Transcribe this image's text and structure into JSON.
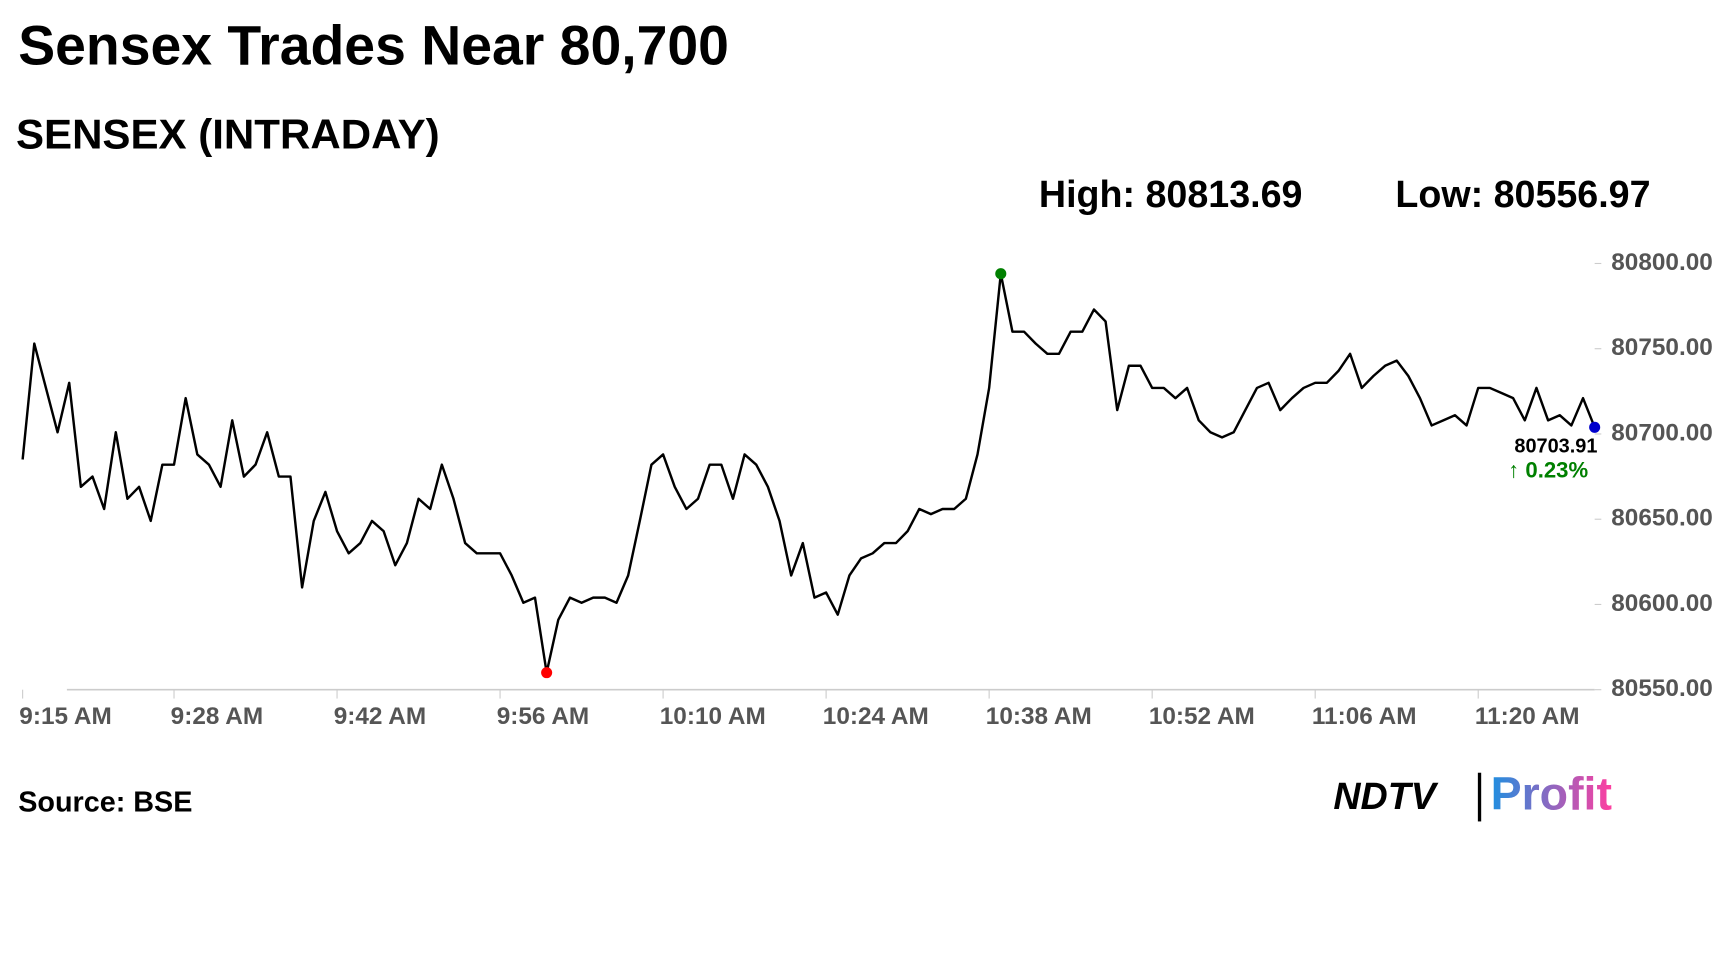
{
  "chart_data": {
    "type": "line",
    "title": "Sensex Trades Near 80,700",
    "subtitle": "SENSEX (INTRADAY)",
    "annotations": {
      "high": "High: 80813.69",
      "low": "Low: 80556.97",
      "last": "80703.91",
      "change": "↑ 0.23%"
    },
    "source": "Source: BSE",
    "x": [
      "9:15 AM",
      "9:16 AM",
      "9:17 AM",
      "9:18 AM",
      "9:19 AM",
      "9:20 AM",
      "9:21 AM",
      "9:22 AM",
      "9:23 AM",
      "9:24 AM",
      "9:25 AM",
      "9:26 AM",
      "9:27 AM",
      "9:28 AM",
      "9:29 AM",
      "9:30 AM",
      "9:31 AM",
      "9:32 AM",
      "9:33 AM",
      "9:34 AM",
      "9:35 AM",
      "9:36 AM",
      "9:37 AM",
      "9:38 AM",
      "9:39 AM",
      "9:40 AM",
      "9:41 AM",
      "9:42 AM",
      "9:43 AM",
      "9:44 AM",
      "9:45 AM",
      "9:46 AM",
      "9:47 AM",
      "9:48 AM",
      "9:49 AM",
      "9:50 AM",
      "9:51 AM",
      "9:52 AM",
      "9:53 AM",
      "9:54 AM",
      "9:55 AM",
      "9:56 AM",
      "9:57 AM",
      "9:58 AM",
      "9:59 AM",
      "10:00 AM",
      "10:01 AM",
      "10:02 AM",
      "10:03 AM",
      "10:04 AM",
      "10:05 AM",
      "10:06 AM",
      "10:07 AM",
      "10:08 AM",
      "10:09 AM",
      "10:10 AM",
      "10:11 AM",
      "10:12 AM",
      "10:13 AM",
      "10:14 AM",
      "10:15 AM",
      "10:16 AM",
      "10:17 AM",
      "10:18 AM",
      "10:19 AM",
      "10:20 AM",
      "10:21 AM",
      "10:22 AM",
      "10:23 AM",
      "10:24 AM",
      "10:25 AM",
      "10:26 AM",
      "10:27 AM",
      "10:28 AM",
      "10:29 AM",
      "10:30 AM",
      "10:31 AM",
      "10:32 AM",
      "10:33 AM",
      "10:34 AM",
      "10:35 AM",
      "10:36 AM",
      "10:37 AM",
      "10:38 AM",
      "10:39 AM",
      "10:40 AM",
      "10:41 AM",
      "10:42 AM",
      "10:43 AM",
      "10:44 AM",
      "10:45 AM",
      "10:46 AM",
      "10:47 AM",
      "10:48 AM",
      "10:49 AM",
      "10:50 AM",
      "10:51 AM",
      "10:52 AM",
      "10:53 AM",
      "10:54 AM",
      "10:55 AM",
      "10:56 AM",
      "10:57 AM",
      "10:58 AM",
      "10:59 AM",
      "11:00 AM",
      "11:01 AM",
      "11:02 AM",
      "11:03 AM",
      "11:04 AM",
      "11:05 AM",
      "11:06 AM",
      "11:07 AM",
      "11:08 AM",
      "11:09 AM",
      "11:10 AM",
      "11:11 AM",
      "11:12 AM",
      "11:13 AM",
      "11:14 AM",
      "11:15 AM",
      "11:16 AM",
      "11:17 AM",
      "11:18 AM",
      "11:19 AM",
      "11:20 AM",
      "11:21 AM",
      "11:22 AM",
      "11:23 AM",
      "11:24 AM",
      "11:25 AM",
      "11:26 AM",
      "11:27 AM",
      "11:28 AM",
      "11:29 AM",
      "11:30 AM"
    ],
    "series": [
      {
        "color": "#000000",
        "values": [
          80685,
          80753,
          80727,
          80701,
          80730,
          80669,
          80675,
          80656,
          80701,
          80662,
          80669,
          80649,
          80682,
          80682,
          80721,
          80688,
          80682,
          80669,
          80708,
          80675,
          80682,
          80701,
          80675,
          80675,
          80610,
          80649,
          80666,
          80643,
          80630,
          80636,
          80649,
          80643,
          80623,
          80636,
          80662,
          80656,
          80682,
          80662,
          80636,
          80630,
          80630,
          80630,
          80617,
          80601,
          80604,
          80560,
          80591,
          80604,
          80601,
          80604,
          80604,
          80601,
          80617,
          80649,
          80682,
          80688,
          80669,
          80656,
          80662,
          80682,
          80682,
          80662,
          80688,
          80682,
          80669,
          80649,
          80617,
          80636,
          80604,
          80607,
          80594,
          80617,
          80627,
          80630,
          80636,
          80636,
          80643,
          80656,
          80653,
          80656,
          80656,
          80662,
          80688,
          80727,
          80794,
          80760,
          80760,
          80753,
          80747,
          80747,
          80760,
          80760,
          80773,
          80766,
          80714,
          80740,
          80740,
          80727,
          80727,
          80721,
          80727,
          80708,
          80701,
          80698,
          80701,
          80714,
          80727,
          80730,
          80714,
          80721,
          80727,
          80730,
          80730,
          80737,
          80747,
          80727,
          80734,
          80740,
          80743,
          80734,
          80721,
          80705,
          80708,
          80711,
          80705,
          80727,
          80727,
          80724,
          80721,
          80708,
          80727,
          80708,
          80711,
          80705,
          80721,
          80703.91
        ]
      }
    ],
    "markers": {
      "high_color": "#008000",
      "low_color": "#ff0000",
      "last_color": "#0000cc"
    },
    "change_color": "#008000",
    "ylim": [
      80550,
      80800
    ],
    "yticks": [
      {
        "value": 80550,
        "label": "80550.00"
      },
      {
        "value": 80600,
        "label": "80600.00"
      },
      {
        "value": 80650,
        "label": "80650.00"
      },
      {
        "value": 80700,
        "label": "80700.00"
      },
      {
        "value": 80750,
        "label": "80750.00"
      },
      {
        "value": 80800,
        "label": "80800.00"
      }
    ],
    "xticks": [
      "9:15 AM",
      "9:28 AM",
      "9:42 AM",
      "9:56 AM",
      "10:10 AM",
      "10:24 AM",
      "10:38 AM",
      "10:52 AM",
      "11:06 AM",
      "11:20 AM"
    ]
  },
  "logo": {
    "ndtv": "NDTV",
    "profit": "Profit"
  }
}
